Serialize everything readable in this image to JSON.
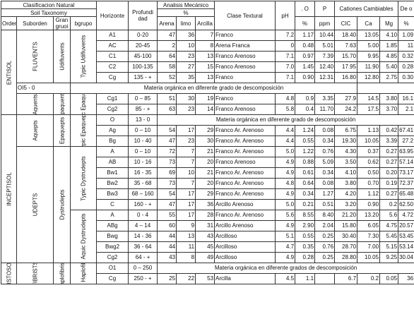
{
  "header": {
    "clasificacion": "Clasificacion Natural",
    "soil_taxonomy": "Soil Taxonomy",
    "orden": "Orden",
    "suborden": "Suborden",
    "gran_grupo": "Gran gruoi",
    "subgrupo": "bgrupo",
    "horizonte": "Horizonte",
    "profundidad": "Profundi dad",
    "analisis": "Analisis Mecánico",
    "pct": "%",
    "arena": "Arena",
    "limo": "limo",
    "arcilla": "Arcilla",
    "clase": "Clase Textural",
    "ph": "pH",
    "mo": ". O",
    "mo_unit": "%",
    "p": "P",
    "p_unit": "ppm",
    "cationes": "Cationes Cambiables",
    "cic": "CIC",
    "ca": "Ca",
    "mg": "Mg",
    "de": "De o",
    "de_unit": "%"
  },
  "taxa": {
    "entisol": "ENTISOL",
    "inceptisol": "INCEPTISOL",
    "histosol": "HISTOSOL",
    "fluvents": "FLUVENTS",
    "aquents": "Aquents",
    "aquepts": "Aquepts",
    "udepts": "UDEPTS",
    "fibrists": "FIBRISTS",
    "udifluvents": "Udifluvents",
    "epaquents": "Epaquents",
    "epaquepts": "Epaquepts",
    "dystrudepts": "Dystrudepts",
    "haplofibrists": "Haplofibrists",
    "typic_udifluvents": "Typic Udifluvents",
    "typic_epaquents": "Typic Epaquents",
    "typic_epaquepts": "Typic Epaquepts",
    "typic_dystrudepts": "Typic Dystrudepts",
    "aquic_dystrudepts": "Aquic Dystrudepts",
    "typic_haplofibrists": "Typic Haplofibrists"
  },
  "rows": [
    [
      "A1",
      "0-20",
      "47",
      "36",
      "7",
      "Franco",
      "7.2",
      "1.17",
      "10.44",
      "18.40",
      "13.05",
      "4.10",
      "1.09"
    ],
    [
      "AC",
      "20-45",
      "2",
      "10",
      "8",
      "Arena Franca",
      "0",
      "0.48",
      "5.01",
      "7.63",
      "5.00",
      "1.85",
      "11"
    ],
    [
      "C1",
      "45-100",
      "64",
      "23",
      "13",
      "Franco Arenoso",
      "7.1",
      "0.97",
      "7.39",
      "15.70",
      "9.95",
      "4.85",
      "0.32"
    ],
    [
      "C2",
      "100-135",
      "58",
      "27",
      "15",
      "Franco Arenoso",
      "7.0",
      "1.45",
      "12.40",
      "17.95",
      "11.90",
      "5.40",
      "0.28"
    ],
    [
      "Cg",
      "135 - +",
      "52",
      "35",
      "13",
      "Franco",
      "7.1",
      "0.90",
      "12.31",
      "16.80",
      "12.80",
      "2.75",
      "0.30"
    ],
    [
      "OI5 - 0",
      "",
      "",
      "",
      "",
      "Materia orgánica en diferente grado de descomposición",
      "",
      "",
      "",
      "",
      "",
      "",
      ""
    ],
    [
      "Cg1",
      "0 – 85",
      "51",
      "30",
      "19",
      "Franco",
      "4.8",
      "0.9",
      "3.35",
      "27.9",
      "14.5",
      "3.80",
      "16.1"
    ],
    [
      "Cg2",
      "85 - +",
      "63",
      "23",
      "14",
      "Franco Arenoso",
      "5.8",
      "0.4",
      "11.70",
      "24.2",
      "17.5",
      "3.70",
      "2.1"
    ],
    [
      "O",
      "13 - 0",
      "",
      "",
      "",
      "Materia orgánica en diferente grado de descomposición",
      "",
      "",
      "",
      "",
      "",
      "",
      ""
    ],
    [
      "Ag",
      "0 – 10",
      "54",
      "17",
      "29",
      "Franco Ar. Arenoso",
      "4.4",
      "1.24",
      "0.08",
      "6.75",
      "1.13",
      "0.42",
      "67.41"
    ],
    [
      "Bg",
      "10 - 40",
      "47",
      "23",
      "30",
      "Franco Ar. Arenoso",
      "4.4",
      "0.55",
      "0.34",
      "19.30",
      "10.05",
      "3.39",
      "27.2"
    ],
    [
      "A",
      "0 – 10",
      "72",
      "7",
      "21",
      "Franco Ar. Arenoso",
      "5.0",
      "1.22",
      "0.76",
      "4.30",
      "0.37",
      "0.27",
      "63.95"
    ],
    [
      "AB",
      "10 - 16",
      "73",
      "7",
      "20",
      "Franco Arenoso",
      "4.9",
      "0.88",
      "5.09",
      "3.50",
      "0.62",
      "0.27",
      "57.14"
    ],
    [
      "Bw1",
      "16 - 35",
      "69",
      "10",
      "21",
      "Franco Ar. Arenoso",
      "4.9",
      "0.61",
      "0.34",
      "4.10",
      "0.50",
      "0.20",
      "73.17"
    ],
    [
      "Bw2",
      "35 - 68",
      "73",
      "7",
      "20",
      "Franco Ar. Arenoso",
      "4.8",
      "0.64",
      "0.08",
      "3.80",
      "0.70",
      "0.19",
      "72.37"
    ],
    [
      "Bw3",
      "68 – 160",
      "54",
      "17",
      "29",
      "Franco Ar. Arenoso",
      "4.9",
      "0.34",
      "1.27",
      "4.20",
      "1.12",
      "0.27",
      "65.48"
    ],
    [
      "C",
      "160 - +",
      "47",
      "17",
      "36",
      "Arcillo Arenoso",
      "5.0",
      "0.21",
      "0.51",
      "3.20",
      "0.90",
      "0.2",
      "62.50"
    ],
    [
      "A",
      "0 - 4",
      "55",
      "17",
      "28",
      "Franco Ar. Arenoso",
      "5.6",
      "8.55",
      "8.40",
      "21.20",
      "13.20",
      "5.6",
      "4.72"
    ],
    [
      "ABg",
      "4 – 14",
      "60",
      "9",
      "31",
      "Arcillo Arenoso",
      "4.9",
      "2.90",
      "2.04",
      "15.80",
      "6.05",
      "4.75",
      "20.57"
    ],
    [
      "Bwg",
      "14 - 36",
      "44",
      "13",
      "43",
      "Arcilloso",
      "5.1",
      "0.55",
      "0.25",
      "30.40",
      "7.30",
      "5.45",
      "53.45"
    ],
    [
      "Bwg2",
      "36 - 64",
      "44",
      "11",
      "45",
      "Arcilloso",
      "4.7",
      "0.35",
      "0.76",
      "28.70",
      "7.00",
      "5.15",
      "53.14"
    ],
    [
      "Cg2",
      "64 - +",
      "43",
      "8",
      "49",
      "Arcilloso",
      "4.9",
      "0.28",
      "0.25",
      "28.80",
      "10.05",
      "9.25",
      "30.04"
    ],
    [
      "O1",
      "0 – 250",
      "",
      "",
      "",
      "Materia orgánica en diferente grados de descomposición",
      "",
      "",
      "",
      "",
      "",
      "",
      ""
    ],
    [
      "Cg",
      "250 - +",
      "25",
      "22",
      "53",
      "Arcilla",
      "4.5",
      "1.1",
      "",
      "6.7",
      "0.2",
      "0.05",
      "36"
    ]
  ]
}
